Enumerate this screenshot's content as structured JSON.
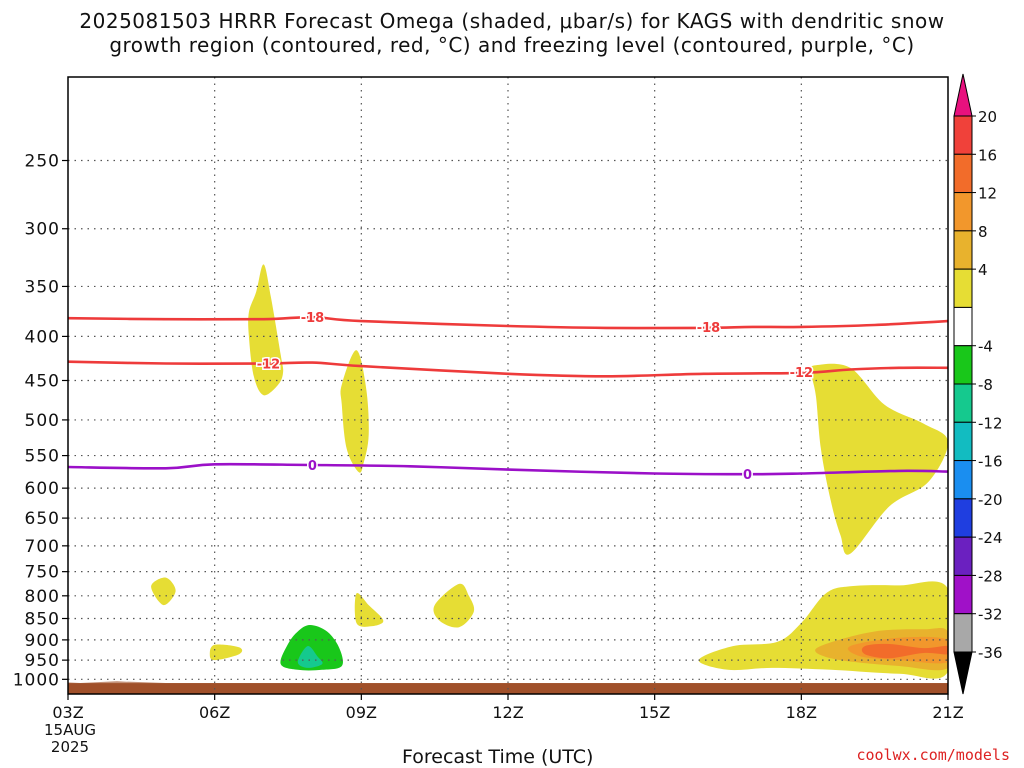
{
  "title": {
    "line1": "2025081503 HRRR Forecast Omega (shaded, μbar/s) for KAGS with dendritic snow",
    "line2": "growth region (contoured, red, °C) and freezing level (contoured, purple, °C)"
  },
  "credit": "coolwx.com/models",
  "chart_data": {
    "type": "heatmap",
    "title": "2025081503 HRRR Forecast Omega (shaded, μbar/s) for KAGS with dendritic snow growth region (contoured, red, °C) and freezing level (contoured, purple, °C)",
    "xlabel": "Forecast Time (UTC)",
    "ylabel": "",
    "x_ticks": [
      "03Z",
      "06Z",
      "09Z",
      "12Z",
      "15Z",
      "18Z",
      "21Z"
    ],
    "x_date_label": [
      "15AUG",
      "2025"
    ],
    "xlim_hours": [
      3,
      21
    ],
    "y_ticks": [
      250,
      300,
      350,
      400,
      450,
      500,
      550,
      600,
      650,
      700,
      750,
      800,
      850,
      900,
      950,
      1000
    ],
    "ylim_hpa": [
      200,
      1040
    ],
    "y_scale": "log",
    "colorbar": {
      "ticks": [
        "20",
        "16",
        "12",
        "8",
        "4",
        "-4",
        "-8",
        "-12",
        "-16",
        "-20",
        "-24",
        "-28",
        "-32",
        "-36"
      ],
      "bins": [
        {
          "range": ">20",
          "color": "#e8117e"
        },
        {
          "range": "16 to 20",
          "color": "#f0413a"
        },
        {
          "range": "12 to 16",
          "color": "#f26c2a"
        },
        {
          "range": "8 to 12",
          "color": "#f2972c"
        },
        {
          "range": "4 to 8",
          "color": "#e8b22d"
        },
        {
          "range": "0 to 4",
          "color": "#e6dd34"
        },
        {
          "range": "-4 to 4",
          "color": "#ffffff"
        },
        {
          "range": "-8 to -4",
          "color": "#19c71a"
        },
        {
          "range": "-12 to -8",
          "color": "#15c98e"
        },
        {
          "range": "-16 to -12",
          "color": "#12bcc1"
        },
        {
          "range": "-20 to -16",
          "color": "#1a8ef0"
        },
        {
          "range": "-24 to -20",
          "color": "#1f3ee0"
        },
        {
          "range": "-28 to -24",
          "color": "#6b20c0"
        },
        {
          "range": "-32 to -28",
          "color": "#a011c8"
        },
        {
          "range": "-36 to -32",
          "color": "#a8a8a8"
        },
        {
          "range": "<-36",
          "color": "#000000"
        }
      ]
    },
    "contours": [
      {
        "label": "-18",
        "color": "#ee3b3b",
        "points": [
          [
            3,
            381
          ],
          [
            5,
            382
          ],
          [
            7,
            382
          ],
          [
            8,
            380
          ],
          [
            9,
            384
          ],
          [
            12,
            389
          ],
          [
            14,
            391
          ],
          [
            16,
            391
          ],
          [
            17,
            390
          ],
          [
            18,
            390
          ],
          [
            19.5,
            388
          ],
          [
            21,
            384
          ]
        ]
      },
      {
        "label": "-12",
        "color": "#ee3b3b",
        "points": [
          [
            3,
            428
          ],
          [
            5,
            430
          ],
          [
            7,
            430
          ],
          [
            8,
            429
          ],
          [
            9,
            433
          ],
          [
            12,
            442
          ],
          [
            14,
            445
          ],
          [
            16,
            442
          ],
          [
            18,
            441
          ],
          [
            19,
            437
          ],
          [
            20,
            435
          ],
          [
            21,
            435
          ]
        ]
      },
      {
        "label": "0",
        "color": "#9b10c8",
        "points": [
          [
            3,
            567
          ],
          [
            5,
            569
          ],
          [
            6,
            563
          ],
          [
            8,
            564
          ],
          [
            10,
            566
          ],
          [
            12,
            571
          ],
          [
            15,
            577
          ],
          [
            17,
            578
          ],
          [
            18,
            577
          ],
          [
            20,
            573
          ],
          [
            21,
            574
          ]
        ]
      }
    ],
    "contour_label_positions": [
      {
        "label": "-18",
        "x": 8.0,
        "p": 380
      },
      {
        "label": "-18",
        "x": 16.1,
        "p": 390
      },
      {
        "label": "-12",
        "x": 7.1,
        "p": 430
      },
      {
        "label": "-12",
        "x": 18.0,
        "p": 440
      },
      {
        "label": "0",
        "x": 8.0,
        "p": 564
      },
      {
        "label": "0",
        "x": 16.9,
        "p": 578
      }
    ],
    "omega_regions": [
      {
        "bin": "0 to 4",
        "points": [
          [
            7.0,
            330
          ],
          [
            7.15,
            360
          ],
          [
            7.35,
            420
          ],
          [
            7.4,
            440
          ],
          [
            7.3,
            455
          ],
          [
            7.0,
            468
          ],
          [
            6.8,
            445
          ],
          [
            6.7,
            400
          ],
          [
            6.7,
            375
          ],
          [
            6.85,
            355
          ]
        ]
      },
      {
        "bin": "0 to 4",
        "points": [
          [
            8.9,
            415
          ],
          [
            9.1,
            460
          ],
          [
            9.15,
            520
          ],
          [
            9.05,
            560
          ],
          [
            8.95,
            575
          ],
          [
            8.7,
            540
          ],
          [
            8.6,
            480
          ],
          [
            8.6,
            455
          ]
        ]
      },
      {
        "bin": "0 to 4",
        "points": [
          [
            5.0,
            762
          ],
          [
            5.2,
            790
          ],
          [
            4.95,
            820
          ],
          [
            4.7,
            780
          ]
        ]
      },
      {
        "bin": "0 to 4",
        "points": [
          [
            8.9,
            795
          ],
          [
            9.15,
            820
          ],
          [
            9.45,
            855
          ],
          [
            9.2,
            868
          ],
          [
            8.9,
            860
          ]
        ]
      },
      {
        "bin": "0 to 4",
        "points": [
          [
            11.0,
            775
          ],
          [
            11.2,
            800
          ],
          [
            11.3,
            835
          ],
          [
            11.0,
            870
          ],
          [
            10.6,
            855
          ],
          [
            10.5,
            820
          ]
        ]
      },
      {
        "bin": "0 to 4",
        "points": [
          [
            6.0,
            912
          ],
          [
            6.5,
            918
          ],
          [
            6.5,
            935
          ],
          [
            6.0,
            950
          ],
          [
            5.9,
            935
          ]
        ]
      },
      {
        "bin": "-8 to -4",
        "points": [
          [
            7.95,
            865
          ],
          [
            8.3,
            880
          ],
          [
            8.55,
            920
          ],
          [
            8.6,
            965
          ],
          [
            8.2,
            975
          ],
          [
            7.7,
            975
          ],
          [
            7.35,
            960
          ],
          [
            7.5,
            910
          ],
          [
            7.7,
            880
          ]
        ]
      },
      {
        "bin": "-12 to -8",
        "points": [
          [
            7.9,
            915
          ],
          [
            8.1,
            940
          ],
          [
            8.2,
            960
          ],
          [
            7.9,
            970
          ],
          [
            7.7,
            955
          ]
        ]
      },
      {
        "bin": "0 to 4",
        "points": [
          [
            18.3,
            432
          ],
          [
            19.0,
            435
          ],
          [
            19.7,
            480
          ],
          [
            20.5,
            505
          ],
          [
            21.0,
            530
          ],
          [
            20.6,
            590
          ],
          [
            19.8,
            630
          ],
          [
            19.0,
            715
          ],
          [
            18.8,
            680
          ],
          [
            18.6,
            620
          ],
          [
            18.4,
            540
          ],
          [
            18.3,
            470
          ],
          [
            18.2,
            440
          ]
        ]
      },
      {
        "bin": "0 to 4",
        "points": [
          [
            18.5,
            795
          ],
          [
            19.0,
            780
          ],
          [
            20.0,
            778
          ],
          [
            21.0,
            785
          ],
          [
            21.0,
            980
          ],
          [
            20.0,
            985
          ],
          [
            18.6,
            975
          ],
          [
            17.4,
            970
          ],
          [
            16.5,
            975
          ],
          [
            15.9,
            950
          ],
          [
            16.6,
            915
          ],
          [
            17.5,
            905
          ],
          [
            18.0,
            860
          ]
        ]
      },
      {
        "bin": "4 to 8",
        "points": [
          [
            18.5,
            910
          ],
          [
            19.5,
            880
          ],
          [
            20.5,
            875
          ],
          [
            21.0,
            880
          ],
          [
            21.0,
            970
          ],
          [
            20.0,
            965
          ],
          [
            18.8,
            950
          ],
          [
            18.3,
            930
          ]
        ]
      },
      {
        "bin": "8 to 12",
        "points": [
          [
            19.0,
            915
          ],
          [
            20.0,
            895
          ],
          [
            21.0,
            900
          ],
          [
            21.0,
            955
          ],
          [
            20.0,
            950
          ],
          [
            19.2,
            940
          ]
        ]
      },
      {
        "bin": "12 to 16",
        "points": [
          [
            19.3,
            915
          ],
          [
            19.8,
            910
          ],
          [
            20.5,
            920
          ],
          [
            21.0,
            915
          ],
          [
            21.0,
            935
          ],
          [
            20.5,
            932
          ],
          [
            19.8,
            945
          ],
          [
            19.3,
            935
          ]
        ]
      }
    ],
    "ground": {
      "color": "#a0502a",
      "from_p": 1010
    }
  }
}
